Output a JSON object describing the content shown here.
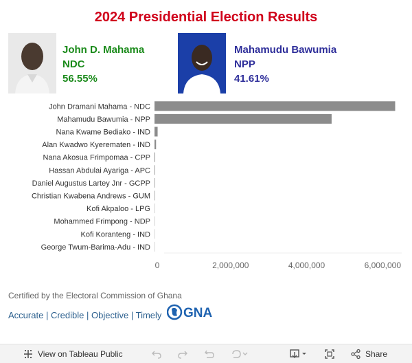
{
  "title": "2024 Presidential Election Results",
  "candidates": [
    {
      "name": "John D. Mahama",
      "party": "NDC",
      "percent": "56.55%"
    },
    {
      "name": "Mahamudu Bawumia",
      "party": "NPP",
      "percent": "41.61%"
    }
  ],
  "chart_data": {
    "type": "bar",
    "orientation": "horizontal",
    "categories": [
      "John Dramani Mahama - NDC",
      "Mahamudu Bawumia - NPP",
      "Nana Kwame Bediako - IND",
      "Alan Kwadwo Kyerematen - IND",
      "Nana Akosua Frimpomaa - CPP",
      "Hassan Abdulai Ayariga - APC",
      "Daniel Augustus Lartey Jnr - GCPP",
      "Christian Kwabena Andrews - GUM",
      "Kofi Akpaloo - LPG",
      "Mohammed Frimpong - NDP",
      "Kofi Koranteng - IND",
      "George Twum-Barima-Adu - IND"
    ],
    "values": [
      6328000,
      4657000,
      82000,
      41000,
      17000,
      15000,
      13000,
      12000,
      7000,
      7000,
      6000,
      6000
    ],
    "xlim": [
      0,
      6500000
    ],
    "xticks": [
      "0",
      "2,000,000",
      "4,000,000",
      "6,000,000"
    ],
    "xtick_values": [
      0,
      2000000,
      4000000,
      6000000
    ],
    "bar_color": "#8c8c8c"
  },
  "footer": {
    "certified": "Certified by the Electoral Commission of Ghana",
    "tags": [
      "Accurate",
      "Credible",
      "Objective",
      "Timely"
    ],
    "separator": "|",
    "logo_text": "GNA"
  },
  "toolbar": {
    "view_label": "View on Tableau Public",
    "share_label": "Share"
  }
}
